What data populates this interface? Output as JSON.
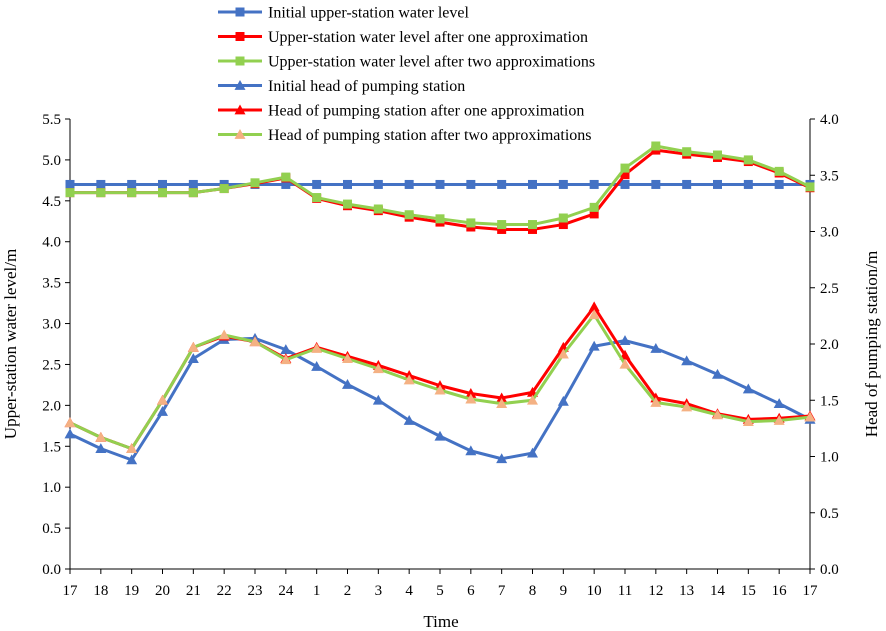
{
  "chart_data": {
    "type": "line",
    "title": "",
    "xlabel": "Time",
    "ylabel_left": "Upper-station water level/m",
    "ylabel_right": "Head of pumping station/m",
    "categories": [
      "17",
      "18",
      "19",
      "20",
      "21",
      "22",
      "23",
      "24",
      "1",
      "2",
      "3",
      "4",
      "5",
      "6",
      "7",
      "8",
      "9",
      "10",
      "11",
      "12",
      "13",
      "14",
      "15",
      "16",
      "17"
    ],
    "y_left": {
      "min": 0.0,
      "max": 5.5,
      "ticks": [
        "0.0",
        "0.5",
        "1.0",
        "1.5",
        "2.0",
        "2.5",
        "3.0",
        "3.5",
        "4.0",
        "4.5",
        "5.0",
        "5.5"
      ]
    },
    "y_right": {
      "min": 0.0,
      "max": 4.0,
      "ticks": [
        "0.0",
        "0.5",
        "1.0",
        "1.5",
        "2.0",
        "2.5",
        "3.0",
        "3.5",
        "4.0"
      ]
    },
    "series": [
      {
        "name": "Initial upper-station water level",
        "axis": "left",
        "marker": "square",
        "color": "#4472C4",
        "values": [
          4.7,
          4.7,
          4.7,
          4.7,
          4.7,
          4.7,
          4.7,
          4.7,
          4.7,
          4.7,
          4.7,
          4.7,
          4.7,
          4.7,
          4.7,
          4.7,
          4.7,
          4.7,
          4.7,
          4.7,
          4.7,
          4.7,
          4.7,
          4.7,
          4.7
        ]
      },
      {
        "name": "Upper-station water level after one approximation",
        "axis": "left",
        "marker": "square",
        "color": "#FF0000",
        "values": [
          4.6,
          4.6,
          4.6,
          4.6,
          4.6,
          4.65,
          4.71,
          4.78,
          4.53,
          4.44,
          4.38,
          4.3,
          4.24,
          4.18,
          4.15,
          4.15,
          4.21,
          4.34,
          4.82,
          5.12,
          5.07,
          5.03,
          4.98,
          4.84,
          4.66
        ]
      },
      {
        "name": "Upper-station water level after two approximations",
        "axis": "left",
        "marker": "square",
        "color": "#92D050",
        "values": [
          4.6,
          4.6,
          4.6,
          4.6,
          4.6,
          4.65,
          4.72,
          4.79,
          4.54,
          4.46,
          4.4,
          4.33,
          4.28,
          4.23,
          4.21,
          4.21,
          4.29,
          4.42,
          4.9,
          5.17,
          5.1,
          5.06,
          5.0,
          4.86,
          4.67
        ]
      },
      {
        "name": "Initial head of pumping station",
        "axis": "right",
        "marker": "triangle",
        "color": "#4472C4",
        "values": [
          1.2,
          1.07,
          0.97,
          1.4,
          1.87,
          2.04,
          2.05,
          1.95,
          1.8,
          1.64,
          1.5,
          1.32,
          1.18,
          1.05,
          0.98,
          1.03,
          1.49,
          1.98,
          2.03,
          1.96,
          1.85,
          1.73,
          1.6,
          1.47,
          1.33
        ]
      },
      {
        "name": "Head of pumping station after one approximation",
        "axis": "right",
        "marker": "triangle",
        "color": "#FF0000",
        "values": [
          1.3,
          1.17,
          1.07,
          1.5,
          1.97,
          2.07,
          2.02,
          1.87,
          1.97,
          1.89,
          1.81,
          1.72,
          1.63,
          1.56,
          1.52,
          1.57,
          1.97,
          2.33,
          1.9,
          1.52,
          1.47,
          1.38,
          1.33,
          1.34,
          1.36
        ]
      },
      {
        "name": "Head of pumping station after two approximations",
        "axis": "right",
        "marker": "triangle",
        "color": "#92D050",
        "values": [
          1.3,
          1.17,
          1.07,
          1.5,
          1.97,
          2.08,
          2.02,
          1.86,
          1.96,
          1.87,
          1.78,
          1.68,
          1.59,
          1.51,
          1.47,
          1.5,
          1.91,
          2.26,
          1.82,
          1.48,
          1.44,
          1.37,
          1.31,
          1.32,
          1.35
        ]
      }
    ],
    "legend": {
      "position": "top-center"
    }
  }
}
